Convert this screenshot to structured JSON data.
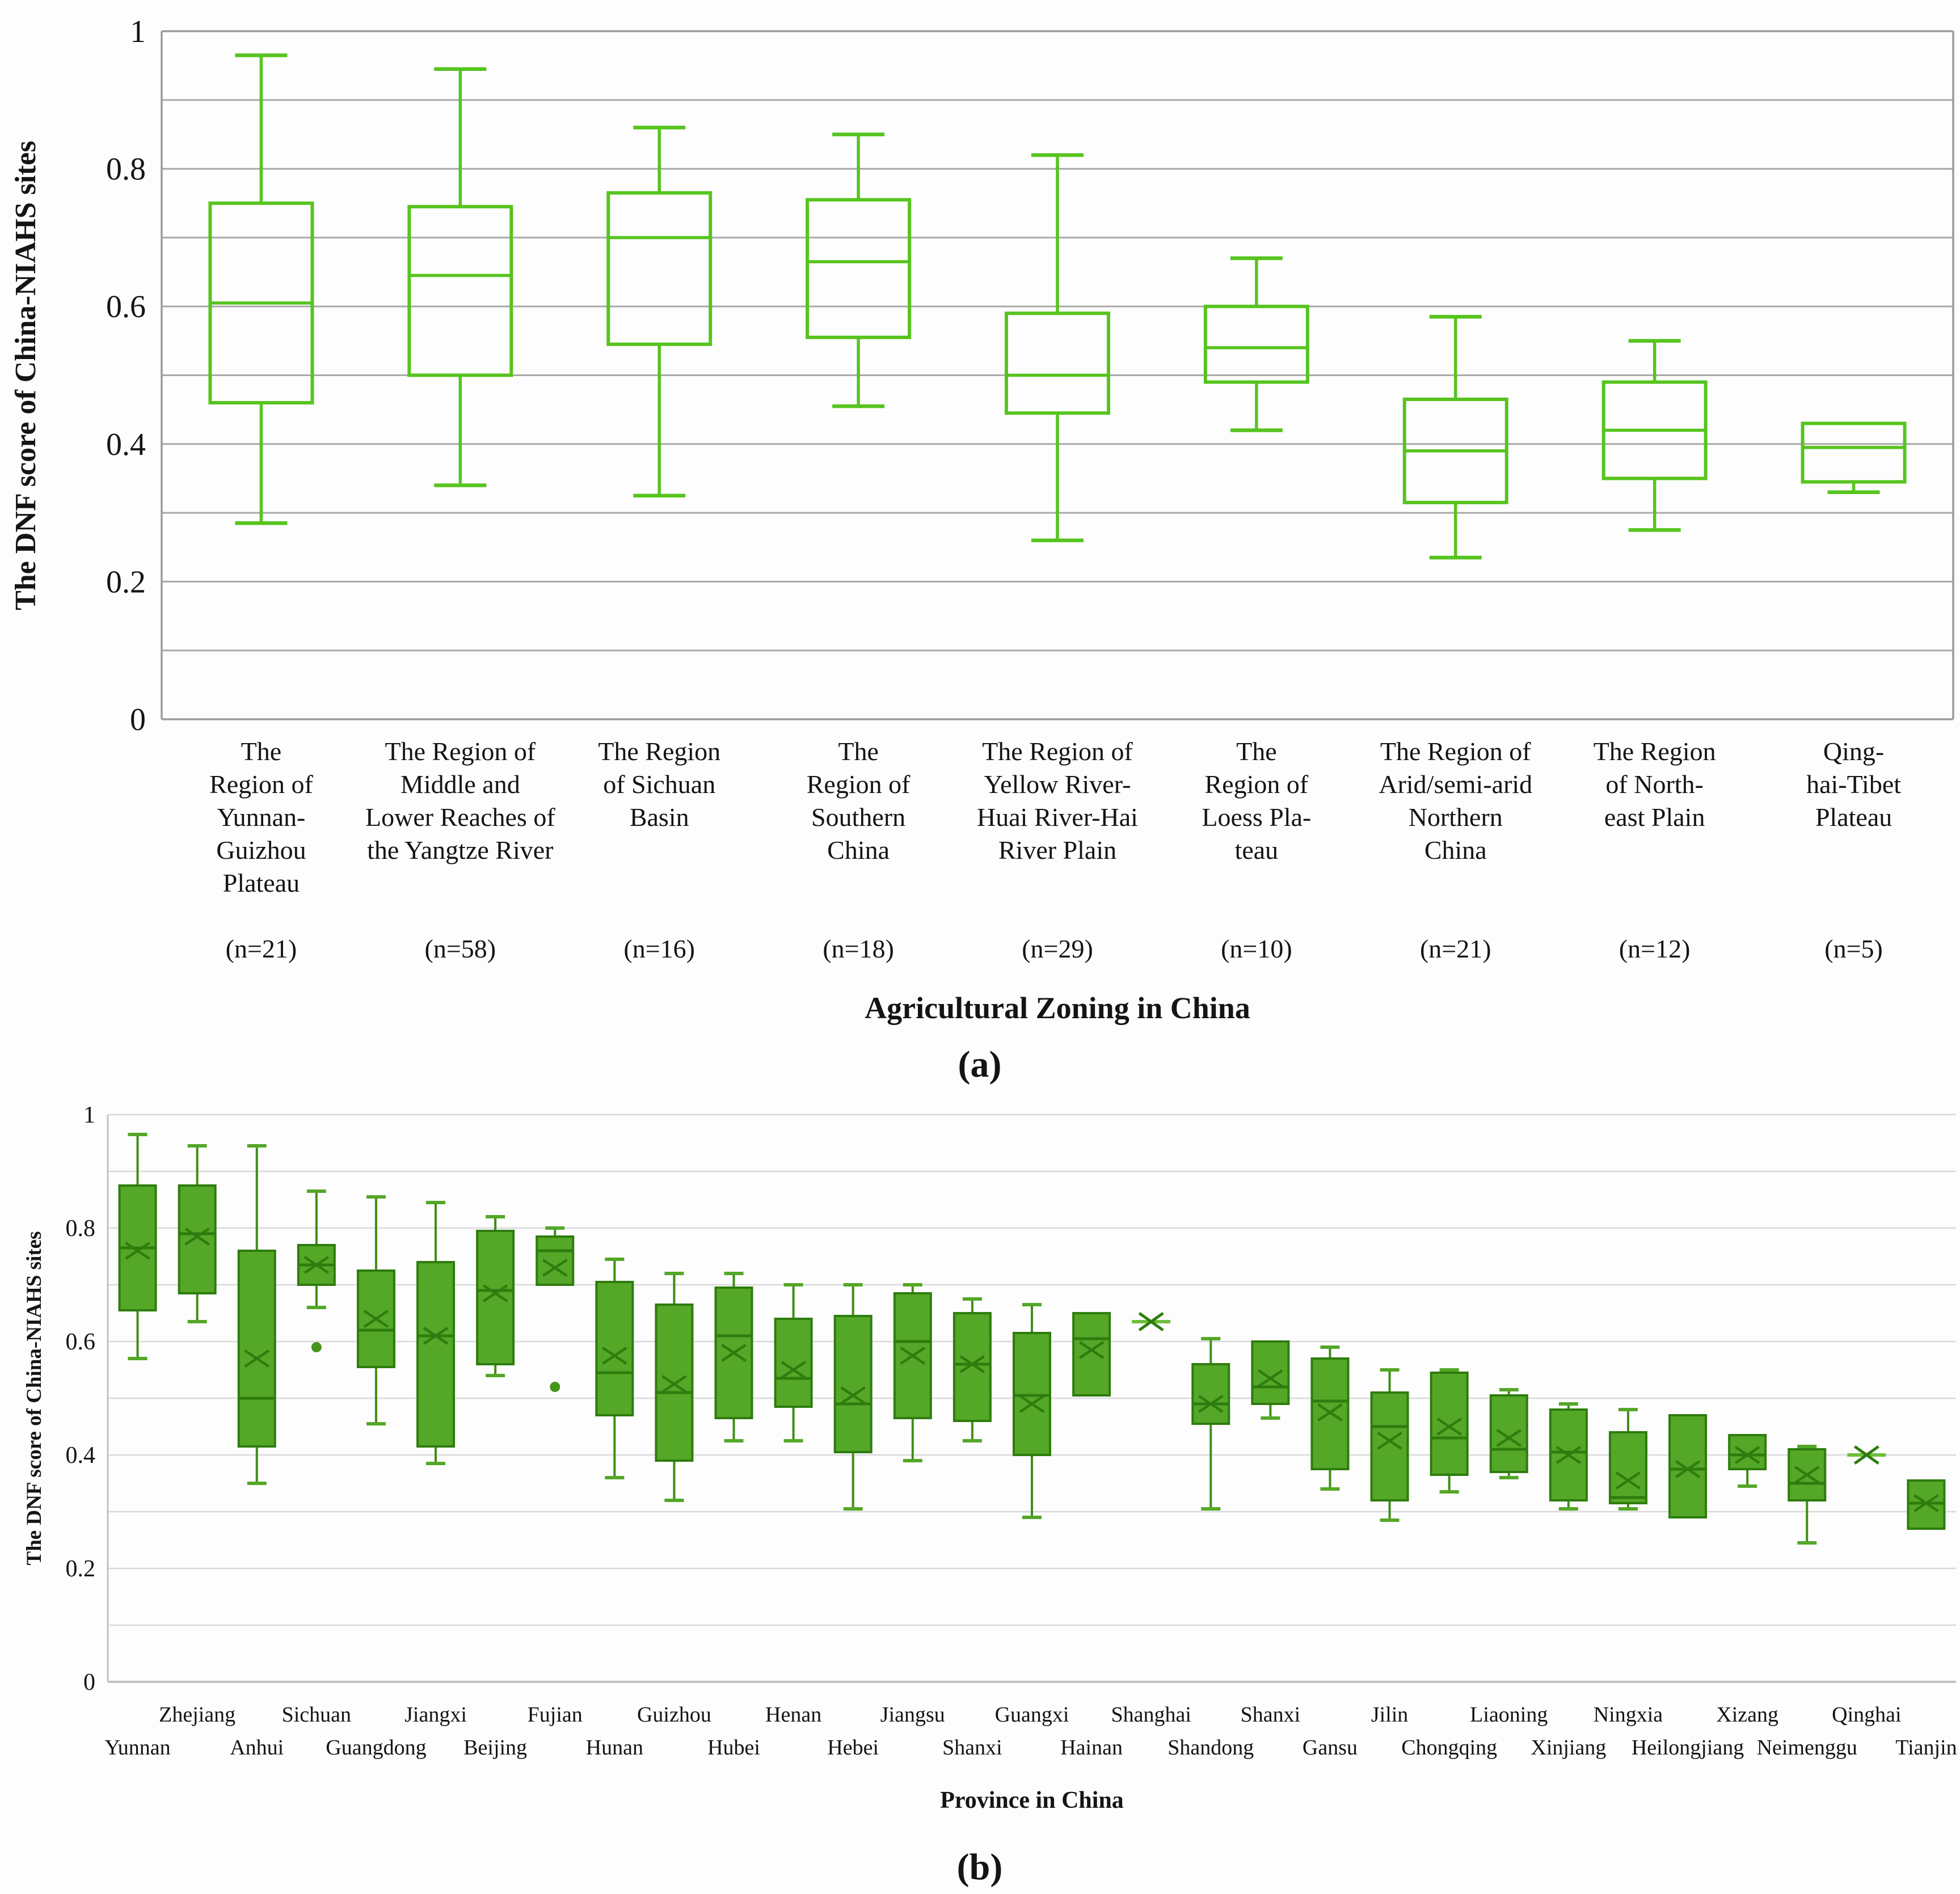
{
  "figure": {
    "caption_a": "(a)",
    "caption_b": "(b)"
  },
  "chart_data": [
    {
      "id": "a",
      "type": "box",
      "caption": "(a)",
      "ylabel": "The DNF score of China-NIAHS sites",
      "xlabel": "Agricultural Zoning in China",
      "ylim": [
        0,
        1
      ],
      "grid_step": 0.1,
      "grid": true,
      "yticks": [
        {
          "v": 1,
          "label": "1"
        },
        {
          "v": 0.8,
          "label": "0.8"
        },
        {
          "v": 0.6,
          "label": "0.6"
        },
        {
          "v": 0.4,
          "label": "0.4"
        },
        {
          "v": 0.2,
          "label": "0.2"
        },
        {
          "v": 0,
          "label": "0"
        }
      ],
      "colors": {
        "box_stroke": "#56c41e",
        "grid": "#a9a9a9",
        "axis": "#9b9b9b"
      },
      "categories": [
        {
          "lines": [
            "The",
            "Region of",
            "Yunnan-",
            "Guizhou",
            "Plateau"
          ],
          "n": "(n=21)"
        },
        {
          "lines": [
            "The Region of",
            "Middle and",
            "Lower Reaches of",
            "the Yangtze River"
          ],
          "n": "(n=58)"
        },
        {
          "lines": [
            "The Region",
            "of Sichuan",
            "Basin"
          ],
          "n": "(n=16)"
        },
        {
          "lines": [
            "The",
            "Region of",
            "Southern",
            "China"
          ],
          "n": "(n=18)"
        },
        {
          "lines": [
            "The Region of",
            "Yellow River-",
            "Huai River-Hai",
            "River Plain"
          ],
          "n": "(n=29)"
        },
        {
          "lines": [
            "The",
            "Region of",
            "Loess Pla-",
            "teau"
          ],
          "n": "(n=10)"
        },
        {
          "lines": [
            "The Region of",
            "Arid/semi-arid",
            "Northern",
            "China"
          ],
          "n": "(n=21)"
        },
        {
          "lines": [
            "The Region",
            "of North-",
            "east Plain"
          ],
          "n": "(n=12)"
        },
        {
          "lines": [
            "Qing-",
            "hai-Tibet",
            "Plateau"
          ],
          "n": "(n=5)"
        }
      ],
      "boxes": [
        {
          "min": 0.285,
          "q1": 0.46,
          "med": 0.605,
          "q3": 0.75,
          "max": 0.965
        },
        {
          "min": 0.34,
          "q1": 0.5,
          "med": 0.645,
          "q3": 0.745,
          "max": 0.945
        },
        {
          "min": 0.325,
          "q1": 0.545,
          "med": 0.7,
          "q3": 0.765,
          "max": 0.86
        },
        {
          "min": 0.455,
          "q1": 0.555,
          "med": 0.665,
          "q3": 0.755,
          "max": 0.85
        },
        {
          "min": 0.26,
          "q1": 0.445,
          "med": 0.5,
          "q3": 0.59,
          "max": 0.82
        },
        {
          "min": 0.42,
          "q1": 0.49,
          "med": 0.54,
          "q3": 0.6,
          "max": 0.67
        },
        {
          "min": 0.235,
          "q1": 0.315,
          "med": 0.39,
          "q3": 0.465,
          "max": 0.585
        },
        {
          "min": 0.275,
          "q1": 0.35,
          "med": 0.42,
          "q3": 0.49,
          "max": 0.55
        },
        {
          "min": 0.33,
          "q1": 0.345,
          "med": 0.395,
          "q3": 0.43,
          "max": 0.43
        }
      ]
    },
    {
      "id": "b",
      "type": "box",
      "caption": "(b)",
      "ylabel": "The DNF score of China-NIAHS sites",
      "xlabel": "Province in China",
      "ylim": [
        0,
        1
      ],
      "grid_step": 0.1,
      "grid": true,
      "yticks": [
        {
          "v": 1,
          "label": "1"
        },
        {
          "v": 0.8,
          "label": "0.8"
        },
        {
          "v": 0.6,
          "label": "0.6"
        },
        {
          "v": 0.4,
          "label": "0.4"
        },
        {
          "v": 0.2,
          "label": "0.2"
        },
        {
          "v": 0,
          "label": "0"
        }
      ],
      "colors": {
        "box_fill": "#54a727",
        "box_stroke": "#2e7c0e",
        "whisker": "#3f8d17",
        "cap": "#54a727",
        "mean": "#2e7c0e",
        "outlier": "#45941c",
        "star": "#6cbf3a",
        "grid": "#d9d9d9",
        "axis": "#c2c2c2"
      },
      "categories": [
        "Yunnan",
        "Zhejiang",
        "Anhui",
        "Sichuan",
        "Guangdong",
        "Jiangxi",
        "Beijing",
        "Fujian",
        "Hunan",
        "Guizhou",
        "Hubei",
        "Henan",
        "Hebei",
        "Jiangsu",
        "Shanxi",
        "Guangxi",
        "Hainan",
        "Shanghai",
        "Shandong",
        "Shanxi",
        "Gansu",
        "Jilin",
        "Chongqing",
        "Liaoning",
        "Xinjiang",
        "Ningxia",
        "Heilongjiang",
        "Xizang",
        "Neimenggu",
        "Qinghai",
        "Tianjin"
      ],
      "boxes": [
        {
          "min": 0.57,
          "q1": 0.655,
          "med": 0.765,
          "q3": 0.875,
          "max": 0.965,
          "mean": 0.76
        },
        {
          "min": 0.635,
          "q1": 0.685,
          "med": 0.79,
          "q3": 0.875,
          "max": 0.945,
          "mean": 0.785
        },
        {
          "min": 0.35,
          "q1": 0.415,
          "med": 0.5,
          "q3": 0.76,
          "max": 0.945,
          "mean": 0.57
        },
        {
          "min": 0.66,
          "q1": 0.7,
          "med": 0.735,
          "q3": 0.77,
          "max": 0.865,
          "mean": 0.735,
          "out": [
            0.59
          ]
        },
        {
          "min": 0.455,
          "q1": 0.555,
          "med": 0.62,
          "q3": 0.725,
          "max": 0.855,
          "mean": 0.64
        },
        {
          "min": 0.385,
          "q1": 0.415,
          "med": 0.61,
          "q3": 0.74,
          "max": 0.845,
          "mean": 0.61
        },
        {
          "min": 0.54,
          "q1": 0.56,
          "med": 0.69,
          "q3": 0.795,
          "max": 0.82,
          "mean": 0.685
        },
        {
          "min": 0.7,
          "q1": 0.7,
          "med": 0.76,
          "q3": 0.785,
          "max": 0.8,
          "mean": 0.73,
          "out": [
            0.52
          ]
        },
        {
          "min": 0.36,
          "q1": 0.47,
          "med": 0.545,
          "q3": 0.705,
          "max": 0.745,
          "mean": 0.575
        },
        {
          "min": 0.32,
          "q1": 0.39,
          "med": 0.51,
          "q3": 0.665,
          "max": 0.72,
          "mean": 0.525
        },
        {
          "min": 0.425,
          "q1": 0.465,
          "med": 0.61,
          "q3": 0.695,
          "max": 0.72,
          "mean": 0.58
        },
        {
          "min": 0.425,
          "q1": 0.485,
          "med": 0.535,
          "q3": 0.64,
          "max": 0.7,
          "mean": 0.55
        },
        {
          "min": 0.305,
          "q1": 0.405,
          "med": 0.49,
          "q3": 0.645,
          "max": 0.7,
          "mean": 0.505
        },
        {
          "min": 0.39,
          "q1": 0.465,
          "med": 0.6,
          "q3": 0.685,
          "max": 0.7,
          "mean": 0.575
        },
        {
          "min": 0.425,
          "q1": 0.46,
          "med": 0.56,
          "q3": 0.65,
          "max": 0.675,
          "mean": 0.56
        },
        {
          "min": 0.29,
          "q1": 0.4,
          "med": 0.505,
          "q3": 0.615,
          "max": 0.665,
          "mean": 0.49
        },
        {
          "min": 0.505,
          "q1": 0.505,
          "med": 0.605,
          "q3": 0.65,
          "max": 0.65,
          "mean": 0.585
        },
        {
          "single": 0.635
        },
        {
          "min": 0.305,
          "q1": 0.455,
          "med": 0.49,
          "q3": 0.56,
          "max": 0.605,
          "mean": 0.49
        },
        {
          "min": 0.465,
          "q1": 0.49,
          "med": 0.52,
          "q3": 0.6,
          "max": 0.6,
          "mean": 0.535
        },
        {
          "min": 0.34,
          "q1": 0.375,
          "med": 0.495,
          "q3": 0.57,
          "max": 0.59,
          "mean": 0.475
        },
        {
          "min": 0.285,
          "q1": 0.32,
          "med": 0.45,
          "q3": 0.51,
          "max": 0.55,
          "mean": 0.425
        },
        {
          "min": 0.335,
          "q1": 0.365,
          "med": 0.43,
          "q3": 0.545,
          "max": 0.55,
          "mean": 0.45
        },
        {
          "min": 0.36,
          "q1": 0.37,
          "med": 0.41,
          "q3": 0.505,
          "max": 0.515,
          "mean": 0.43
        },
        {
          "min": 0.305,
          "q1": 0.32,
          "med": 0.405,
          "q3": 0.48,
          "max": 0.49,
          "mean": 0.4
        },
        {
          "min": 0.305,
          "q1": 0.315,
          "med": 0.325,
          "q3": 0.44,
          "max": 0.48,
          "mean": 0.355
        },
        {
          "min": 0.29,
          "q1": 0.29,
          "med": 0.375,
          "q3": 0.47,
          "max": 0.47,
          "mean": 0.375
        },
        {
          "min": 0.345,
          "q1": 0.375,
          "med": 0.4,
          "q3": 0.435,
          "max": 0.435,
          "mean": 0.4
        },
        {
          "min": 0.245,
          "q1": 0.32,
          "med": 0.35,
          "q3": 0.41,
          "max": 0.415,
          "mean": 0.365
        },
        {
          "single": 0.4
        },
        {
          "min": 0.27,
          "q1": 0.27,
          "med": 0.315,
          "q3": 0.355,
          "max": 0.355,
          "mean": 0.315
        }
      ]
    }
  ]
}
